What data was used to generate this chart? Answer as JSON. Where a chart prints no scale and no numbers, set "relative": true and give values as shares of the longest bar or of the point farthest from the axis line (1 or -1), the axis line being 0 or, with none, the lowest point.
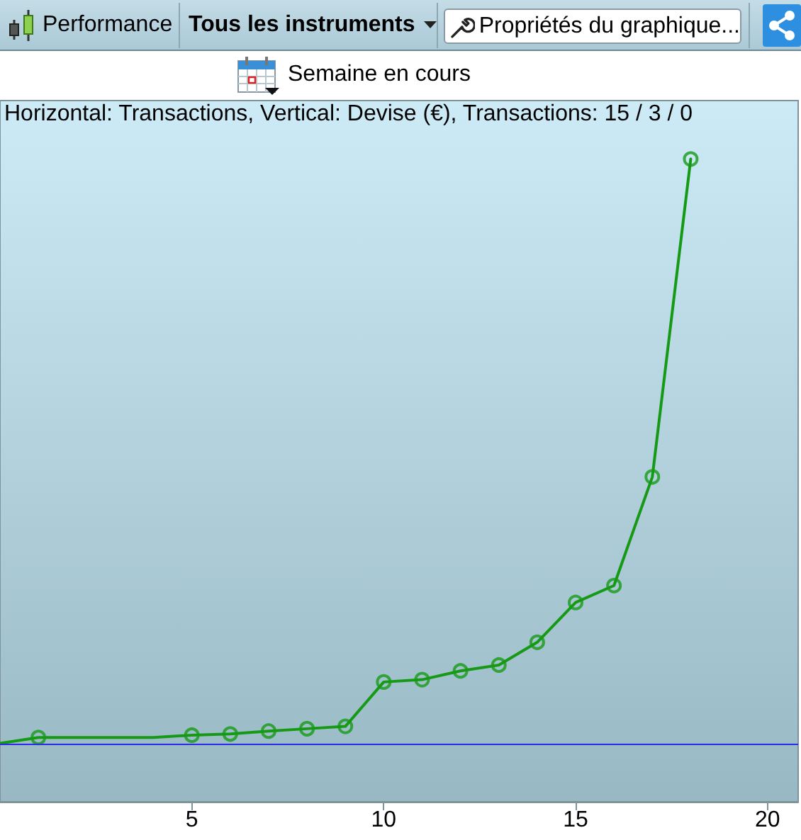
{
  "chart_data": {
    "type": "line",
    "title": "Performance",
    "subtitle": "Semaine en cours",
    "annotations": [
      "Tous les instruments",
      "Propriétés du graphique...",
      "Horizontal: Transactions, Vertical: Devise (€), Transactions: 15 / 3 / 0"
    ],
    "relative": true,
    "xlim": [
      0,
      20.8
    ],
    "xticks": [
      5,
      10,
      15,
      20
    ],
    "series": [
      {
        "color": "#169a16",
        "marker": "none",
        "x": [
          0,
          1,
          2,
          3,
          4,
          5,
          6,
          7,
          8,
          9,
          10,
          11,
          12,
          13,
          14,
          15,
          16,
          17,
          18
        ],
        "values": [
          0,
          0.01,
          0.01,
          0.01,
          0.01,
          0.014,
          0.016,
          0.021,
          0.025,
          0.029,
          0.105,
          0.109,
          0.124,
          0.134,
          0.173,
          0.241,
          0.27,
          0.456,
          1
        ]
      },
      {
        "type": "scatter",
        "color": "#169a16",
        "marker": "circle",
        "x": [
          1,
          5,
          6,
          7,
          8,
          9,
          10,
          11,
          12,
          13,
          14,
          15,
          16,
          17,
          18
        ],
        "values": [
          0.01,
          0.014,
          0.016,
          0.021,
          0.025,
          0.029,
          0.105,
          0.109,
          0.124,
          0.134,
          0.173,
          0.241,
          0.27,
          0.456,
          1
        ]
      }
    ],
    "ref_lines": [
      {
        "axis": "y",
        "value": 0,
        "color": "#2a2ae8"
      }
    ]
  }
}
